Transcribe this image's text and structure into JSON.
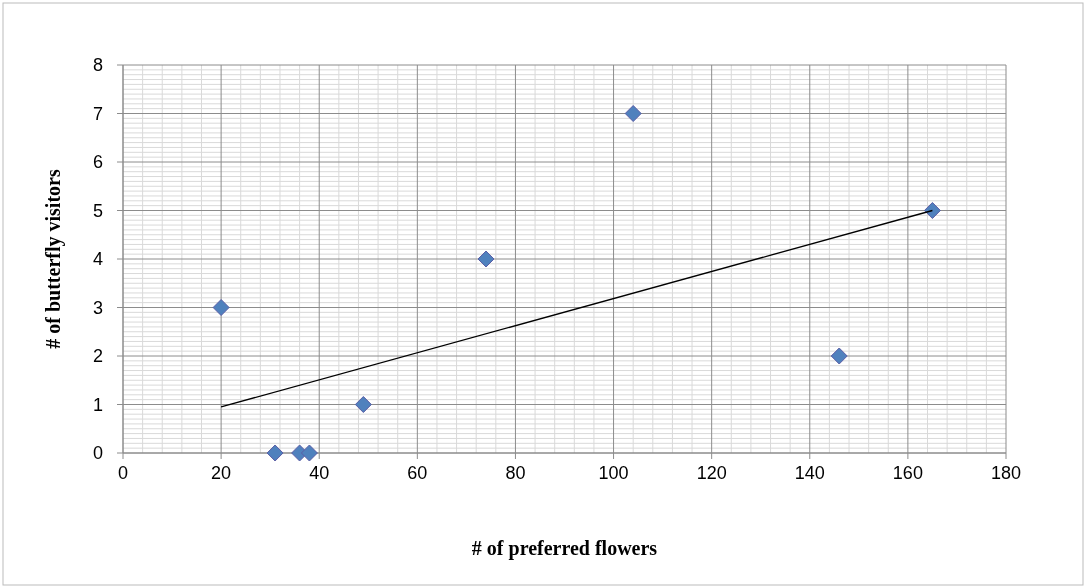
{
  "chart_data": {
    "type": "scatter",
    "xlabel": "# of preferred flowers",
    "ylabel": "# of butterfly visitors",
    "xlim": [
      0,
      180
    ],
    "xticks": [
      0,
      20,
      40,
      60,
      80,
      100,
      120,
      140,
      160,
      180
    ],
    "ylim": [
      0,
      8
    ],
    "yticks": [
      0,
      1,
      2,
      3,
      4,
      5,
      6,
      7,
      8
    ],
    "grid": true,
    "series": [
      {
        "marker": "diamond",
        "color": "#4f81bd",
        "x": [
          20,
          31,
          36,
          38,
          49,
          74,
          104,
          146,
          165
        ],
        "values": [
          3,
          0,
          0,
          0,
          1,
          4,
          7,
          2,
          5
        ]
      },
      {
        "type": "line",
        "marker": "none",
        "color": "#000000",
        "x": [
          20,
          165
        ],
        "values": [
          0.95,
          5.0
        ]
      }
    ]
  }
}
